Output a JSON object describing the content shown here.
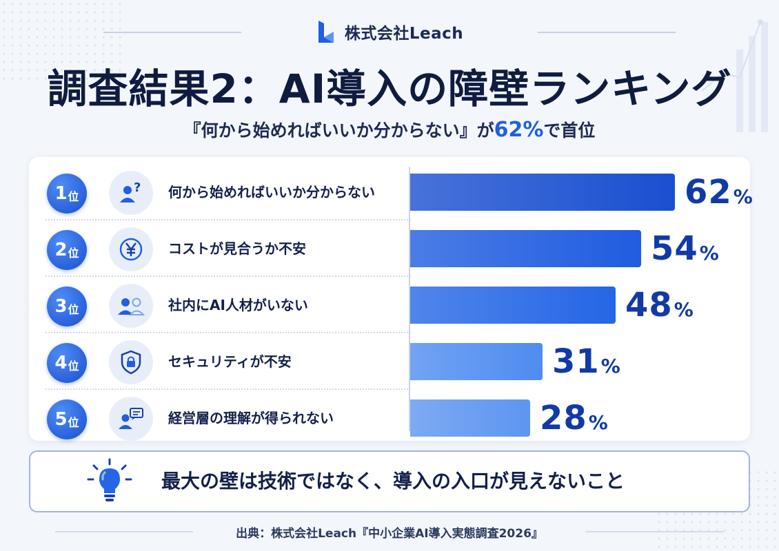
{
  "brand": {
    "name": "株式会社Leach",
    "logo_icon": "leach-logo-icon"
  },
  "title": "調査結果2：AI導入の障壁ランキング",
  "subtitle": {
    "before": "『何から始めればいいか分からない』が",
    "highlight": "62%",
    "after": "で首位"
  },
  "chart_data": {
    "type": "bar",
    "orientation": "horizontal",
    "categories": [
      "何から始めればいいか分からない",
      "コストが見合うか不安",
      "社内にAI人材がいない",
      "セキュリティが不安",
      "経営層の理解が得られない"
    ],
    "values": [
      62,
      54,
      48,
      31,
      28
    ],
    "value_unit": "%",
    "xlim": [
      0,
      100
    ],
    "grid": false,
    "bar_colors": [
      "#1a4fd0",
      "#1f5ce0",
      "#2566e6",
      "#4f8cf0",
      "#5d95f0"
    ]
  },
  "rows": [
    {
      "rank": "1",
      "suffix": "位",
      "label": "何から始めればいいか分からない",
      "icon": "person-question-icon"
    },
    {
      "rank": "2",
      "suffix": "位",
      "label": "コストが見合うか不安",
      "icon": "yen-coin-icon"
    },
    {
      "rank": "3",
      "suffix": "位",
      "label": "社内にAI人材がいない",
      "icon": "people-icon"
    },
    {
      "rank": "4",
      "suffix": "位",
      "label": "セキュリティが不安",
      "icon": "shield-lock-icon"
    },
    {
      "rank": "5",
      "suffix": "位",
      "label": "経営層の理解が得られない",
      "icon": "person-chat-icon"
    }
  ],
  "callout": {
    "text": "最大の壁は技術ではなく、導入の入口が見えないこと",
    "icon": "lightbulb-icon"
  },
  "source": "出典：株式会社Leach『中小企業AI導入実態調査2026』",
  "colors": {
    "accent": "#1f5fe0",
    "dark_text": "#0f1c3f",
    "bar_dark": "#1a4fd0",
    "bar_light": "#5d95f0"
  }
}
